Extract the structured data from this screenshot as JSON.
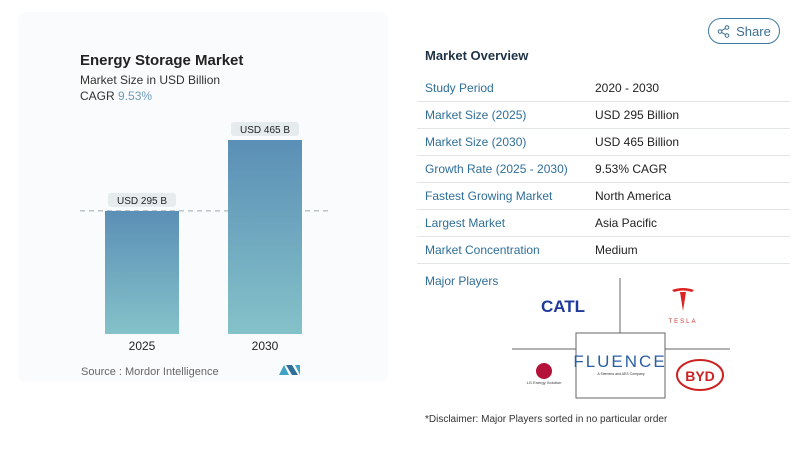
{
  "header": {
    "share_label": "Share",
    "share_icon": "share-icon"
  },
  "chart_data": {
    "type": "bar",
    "title": "Energy Storage Market",
    "subtitle": "Market Size in USD Billion",
    "cagr_label": "CAGR",
    "cagr_value": "9.53%",
    "categories": [
      "2025",
      "2030"
    ],
    "values": [
      295,
      465
    ],
    "data_labels": [
      "USD 295 B",
      "USD 465 B"
    ],
    "ylim": [
      0,
      465
    ],
    "grid": false,
    "reference_line_at": 295,
    "colors": {
      "bar_top": "#5b8fb6",
      "bar_bottom": "#84c2c9"
    },
    "source": "Source :  Mordor Intelligence"
  },
  "overview": {
    "title": "Market Overview",
    "rows": [
      {
        "key": "Study Period",
        "value": "2020 - 2030"
      },
      {
        "key": "Market Size (2025)",
        "value": "USD 295 Billion"
      },
      {
        "key": "Market Size (2030)",
        "value": "USD 465 Billion"
      },
      {
        "key": "Growth Rate (2025 - 2030)",
        "value": "9.53% CAGR"
      },
      {
        "key": "Fastest Growing Market",
        "value": "North America"
      },
      {
        "key": "Largest Market",
        "value": "Asia Pacific"
      },
      {
        "key": "Market Concentration",
        "value": "Medium"
      }
    ],
    "major_players_label": "Major Players",
    "players": [
      "CATL",
      "TESLA",
      "FLUENCE",
      "A Siemens and AES Company",
      "LG Energy Solution",
      "BYD"
    ],
    "disclaimer": "*Disclaimer: Major Players sorted in no particular order"
  }
}
